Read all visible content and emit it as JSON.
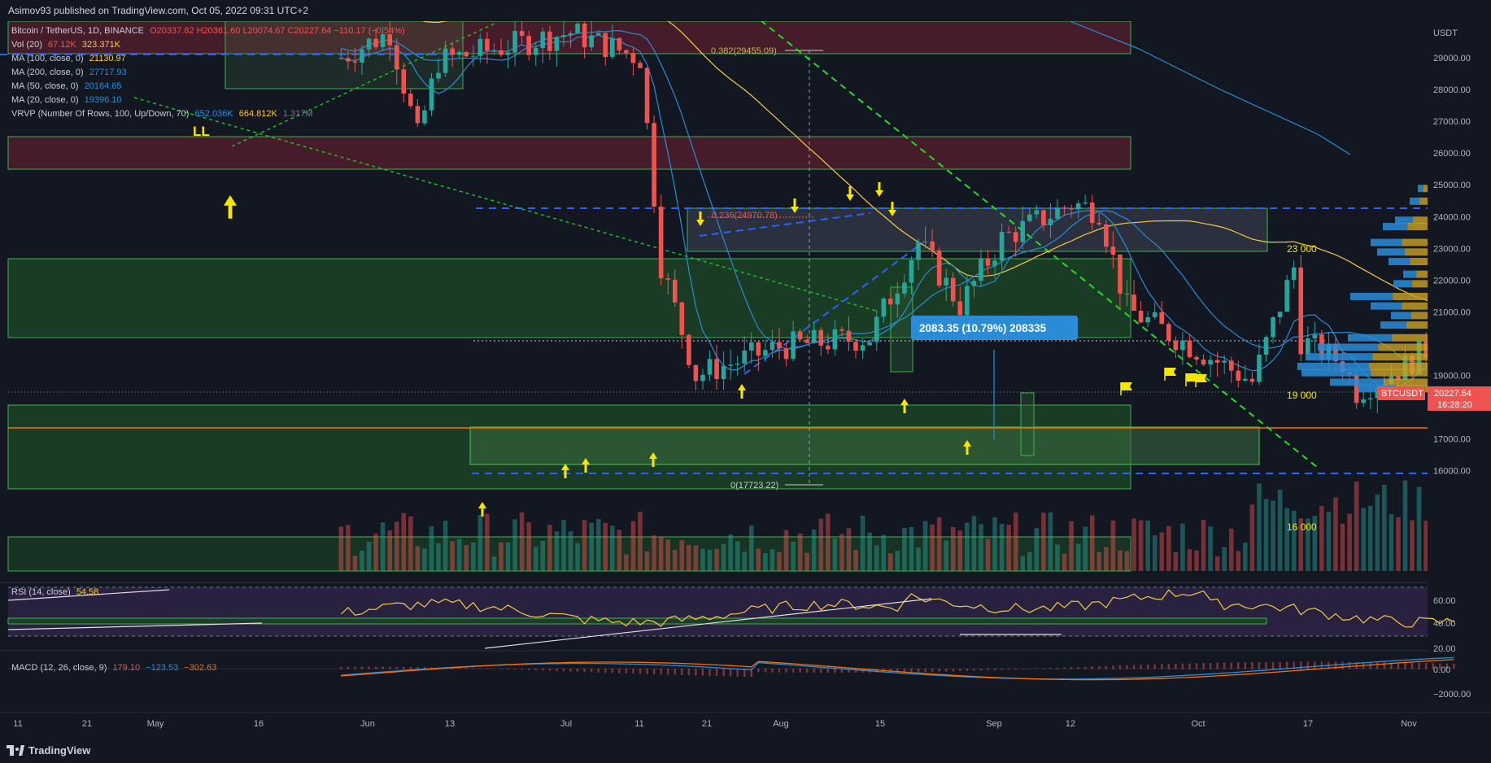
{
  "header": {
    "publish_line": "Asimov93 published on TradingView.com, Oct 05, 2022 09:31 UTC+2"
  },
  "legend": {
    "symbol_line": "Bitcoin / TetherUS, 1D, BINANCE",
    "ohlc_partial": "O20337.82 H20361.60 L20074.67 C20227.64 −110.17 (−0.54%)",
    "vol": {
      "label": "Vol (20)",
      "v1": "67.12K",
      "v2": "323.371K"
    },
    "ma100": {
      "label": "MA (100, close, 0)",
      "value": "21130.97"
    },
    "ma200": {
      "label": "MA (200, close, 0)",
      "value": "27717.93"
    },
    "ma50": {
      "label": "MA (50, close, 0)",
      "value": "20164.65"
    },
    "ma20": {
      "label": "MA (20, close, 0)",
      "value": "19396.10"
    },
    "vrvp": {
      "label": "VRVP (Number Of Rows, 100, Up/Down, 70)",
      "v1": "652.036K",
      "v2": "664.812K",
      "v3": "1.317M"
    }
  },
  "annotations": {
    "ll": "LL",
    "fib_382": "0.382(29455.09)",
    "fib_236": "0.236(24970.78)",
    "fib_0": "0(17723.22)",
    "measure": "2083.35 (10.79%) 208335",
    "lvl_23000": "23 000",
    "lvl_19000": "19 000",
    "lvl_16000": "16 000"
  },
  "price_axis": {
    "unit": "USDT",
    "ticks": [
      "29000.00",
      "28000.00",
      "27000.00",
      "26000.00",
      "25000.00",
      "24000.00",
      "23000.00",
      "22000.00",
      "21000.00",
      "19000.00",
      "18000.00",
      "17000.00",
      "16000.00"
    ],
    "last_symbol": "BTCUSDT",
    "last_price": "20227.64",
    "countdown": "16:28:20"
  },
  "rsi": {
    "label": "RSI (14, close)",
    "value": "54.58",
    "ticks": [
      "60.00",
      "40.00",
      "20.00"
    ]
  },
  "macd": {
    "label": "MACD (12, 26, close, 9)",
    "v1": "179.10",
    "v2": "−123.53",
    "v3": "−302.63",
    "ticks": [
      "0.00",
      "−2000.00"
    ]
  },
  "time_axis": [
    "11",
    "21",
    "May",
    "16",
    "Jun",
    "13",
    "Jul",
    "11",
    "21",
    "Aug",
    "15",
    "Sep",
    "12",
    "Oct",
    "17",
    "Nov"
  ],
  "footer": {
    "brand": "TradingView"
  },
  "colors": {
    "background": "#131722",
    "up": "#26a69a",
    "down": "#ef5350",
    "ma_yellow": "#f7c948",
    "ma_blue": "#2a8cd6",
    "zone_green": "#1f6b2a",
    "zone_red": "#6b1f2a",
    "fib_green_line": "#22dd22",
    "price_label_bg": "#ef5350"
  },
  "chart_data": {
    "type": "candlestick",
    "symbol": "BTCUSDT",
    "timeframe": "1D",
    "ylim": [
      15300,
      30500
    ],
    "key_levels": [
      23000,
      19000,
      16000
    ],
    "fib": {
      "0.382": 29455.09,
      "0.236": 24970.78,
      "0": 17723.22
    },
    "last": {
      "open": 20337.82,
      "high": 20361.6,
      "low": 20074.67,
      "close": 20227.64
    },
    "approx_path": [
      {
        "date": "Apr-28",
        "close": 29000
      },
      {
        "date": "May-05",
        "close": 29800
      },
      {
        "date": "May-09",
        "close": 26500
      },
      {
        "date": "May-12",
        "close": 28900
      },
      {
        "date": "May-31",
        "close": 29800
      },
      {
        "date": "Jun-10",
        "close": 29000
      },
      {
        "date": "Jun-13",
        "close": 22500
      },
      {
        "date": "Jun-18",
        "close": 19000
      },
      {
        "date": "Jun-30",
        "close": 19900
      },
      {
        "date": "Jul-13",
        "close": 20200
      },
      {
        "date": "Jul-20",
        "close": 23200
      },
      {
        "date": "Jul-26",
        "close": 21200
      },
      {
        "date": "Aug-01",
        "close": 23300
      },
      {
        "date": "Aug-11",
        "close": 24400
      },
      {
        "date": "Aug-15",
        "close": 24200
      },
      {
        "date": "Aug-19",
        "close": 21100
      },
      {
        "date": "Aug-26",
        "close": 20200
      },
      {
        "date": "Sep-06",
        "close": 18800
      },
      {
        "date": "Sep-12",
        "close": 22400
      },
      {
        "date": "Sep-13",
        "close": 20100
      },
      {
        "date": "Sep-19",
        "close": 19400
      },
      {
        "date": "Sep-21",
        "close": 18500
      },
      {
        "date": "Sep-28",
        "close": 19300
      },
      {
        "date": "Oct-04",
        "close": 20300
      },
      {
        "date": "Oct-05",
        "close": 20227.64
      }
    ],
    "ma": {
      "ma100": 21130.97,
      "ma200": 27717.93,
      "ma50": 20164.65,
      "ma20": 19396.1
    },
    "rsi_last": 54.58,
    "macd_last": {
      "hist": 179.1,
      "signal_line": -123.53,
      "macd_line": -302.63
    }
  }
}
